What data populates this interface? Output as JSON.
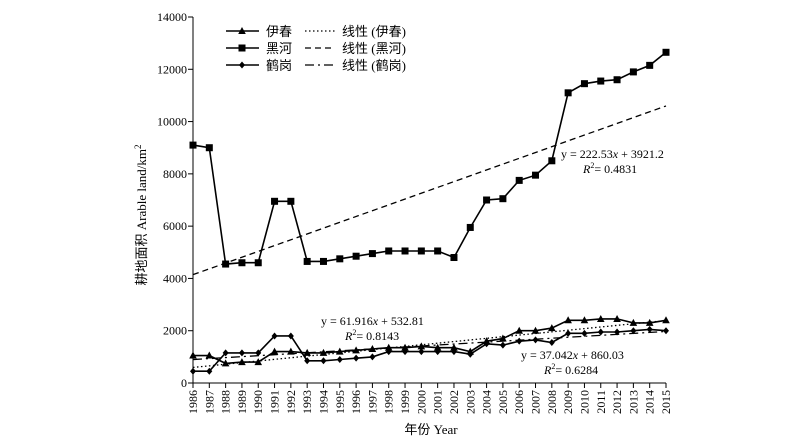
{
  "chart_data": {
    "type": "line",
    "ylabel": "耕地面积 Arable land/km²",
    "ylabel_main": "耕地面积 Arable land/km",
    "ylabel_sup": "2",
    "xlabel": "年份 Year",
    "ylim": [
      0,
      14000
    ],
    "yticks": [
      "0",
      "2000",
      "4000",
      "6000",
      "8000",
      "10000",
      "12000",
      "14000"
    ],
    "categories": [
      "1986",
      "1987",
      "1988",
      "1989",
      "1990",
      "1991",
      "1992",
      "1993",
      "1994",
      "1995",
      "1996",
      "1997",
      "1998",
      "1999",
      "2000",
      "2001",
      "2002",
      "2003",
      "2004",
      "2005",
      "2006",
      "2007",
      "2008",
      "2009",
      "2010",
      "2011",
      "2012",
      "2013",
      "2014",
      "2015"
    ],
    "legend_position": "top-left",
    "series": [
      {
        "name": "伊春",
        "marker": "triangle",
        "values": [
          1050,
          1050,
          750,
          800,
          800,
          1200,
          1200,
          1150,
          1150,
          1200,
          1250,
          1300,
          1350,
          1350,
          1400,
          1350,
          1350,
          1200,
          1600,
          1700,
          2000,
          2000,
          2100,
          2400,
          2400,
          2450,
          2450,
          2300,
          2300,
          2400
        ]
      },
      {
        "name": "黑河",
        "marker": "square",
        "values": [
          9100,
          9000,
          4550,
          4600,
          4600,
          6950,
          6950,
          4650,
          4650,
          4750,
          4850,
          4950,
          5050,
          5050,
          5050,
          5050,
          4800,
          5950,
          7000,
          7050,
          7750,
          7950,
          8500,
          11100,
          11450,
          11550,
          11600,
          11900,
          12150,
          12650
        ]
      },
      {
        "name": "鹤岗",
        "marker": "diamond",
        "values": [
          450,
          450,
          1150,
          1150,
          1150,
          1800,
          1800,
          850,
          850,
          900,
          950,
          1000,
          1200,
          1200,
          1200,
          1200,
          1200,
          1100,
          1500,
          1450,
          1600,
          1650,
          1550,
          1900,
          1900,
          1950,
          1950,
          2000,
          2050,
          2000
        ]
      }
    ],
    "trendlines": [
      {
        "name": "线性 (伊春)",
        "series": "伊春",
        "style": "dotted",
        "slope": 61.916,
        "intercept": 532.81,
        "equation_prefix": "y = 61.916",
        "equation_var": "x",
        "equation_suffix": " + 532.81",
        "r2_label": "R",
        "r2_value": "= 0.8143"
      },
      {
        "name": "线性 (黑河)",
        "series": "黑河",
        "style": "dashed",
        "slope": 222.53,
        "intercept": 3921.2,
        "equation_prefix": "y = 222.53",
        "equation_var": "x",
        "equation_suffix": " + 3921.2",
        "r2_label": "R",
        "r2_value": "= 0.4831"
      },
      {
        "name": "线性 (鹤岗)",
        "series": "鹤岗",
        "style": "dashdot",
        "slope": 37.042,
        "intercept": 860.03,
        "equation_prefix": "y = 37.042",
        "equation_var": "x",
        "equation_suffix": " + 860.03",
        "r2_label": "R",
        "r2_value": "= 0.6284"
      }
    ]
  }
}
